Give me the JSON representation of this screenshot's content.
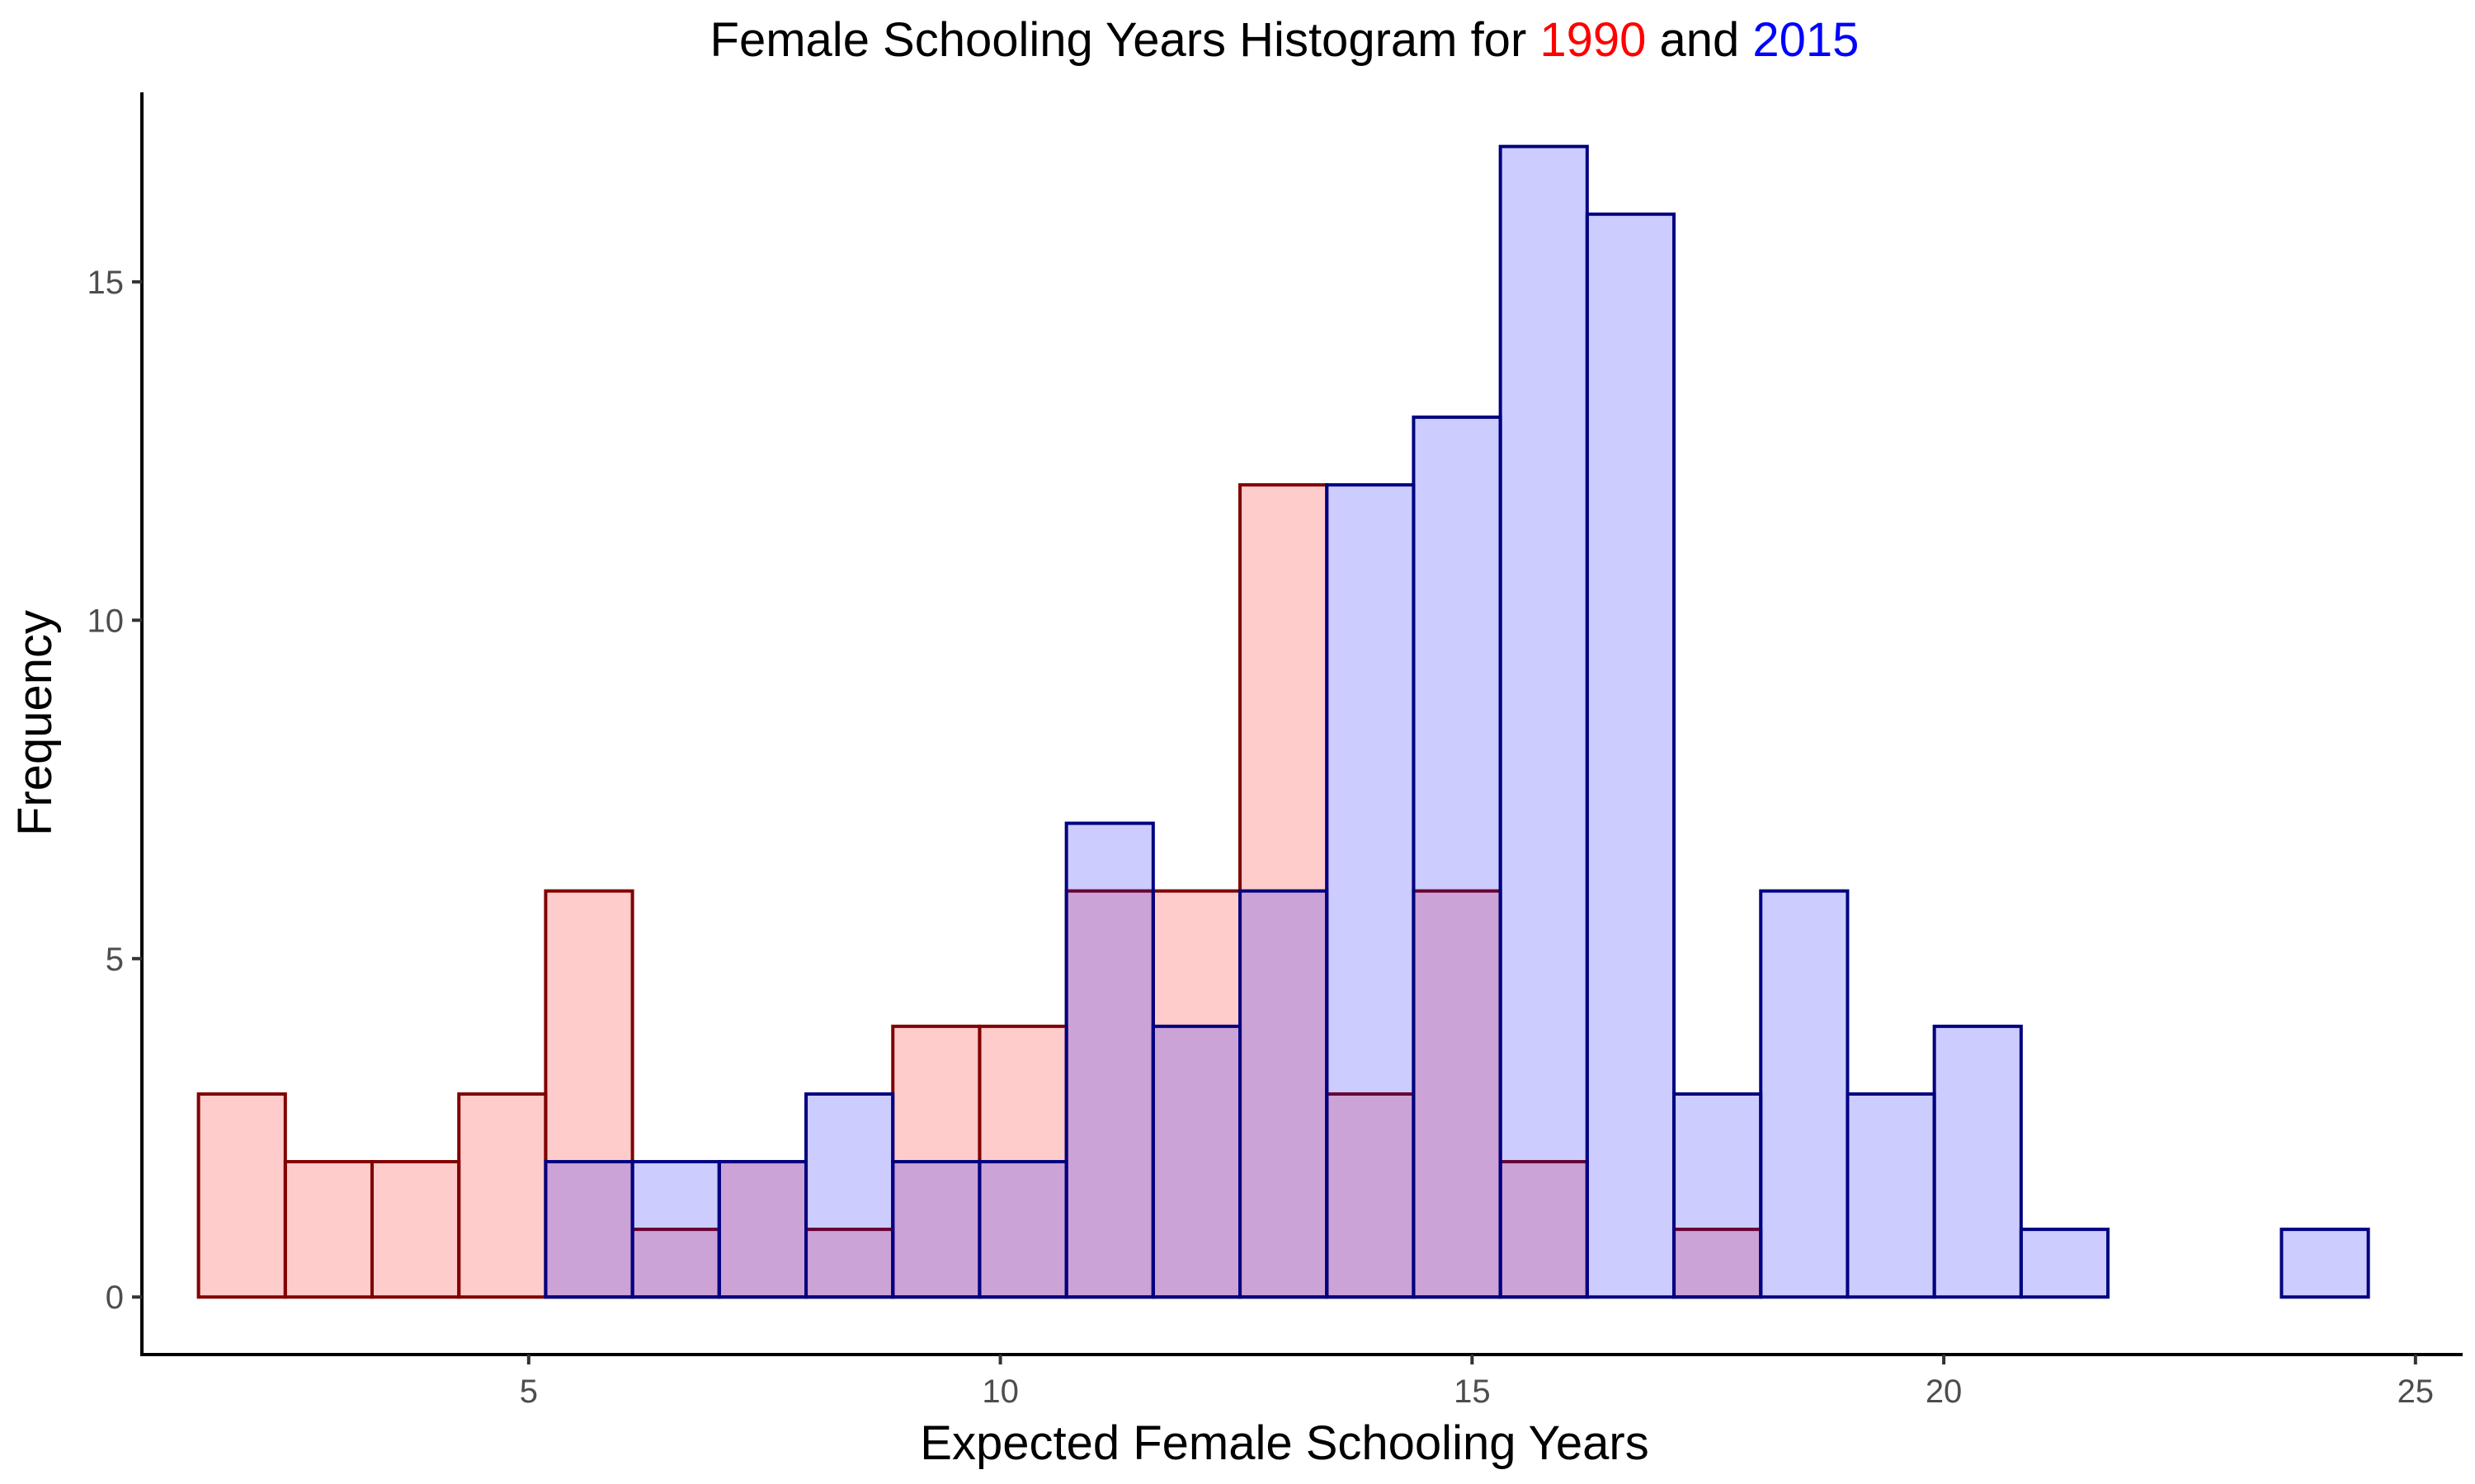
{
  "chart_data": {
    "type": "bar",
    "title": {
      "prefix": "Female Schooling Years Histogram for ",
      "year1": "1990",
      "middle": " and ",
      "year2": "2015"
    },
    "xlabel": "Expected Female Schooling Years",
    "ylabel": "Frequency",
    "xlim": [
      0.9,
      25.5
    ],
    "ylim": [
      -0.85,
      17.8
    ],
    "xticks": [
      5,
      10,
      15,
      20,
      25
    ],
    "yticks": [
      0,
      5,
      10,
      15
    ],
    "grid": false,
    "bins": [
      [
        1.5,
        2.42
      ],
      [
        2.42,
        3.34
      ],
      [
        3.34,
        4.26
      ],
      [
        4.26,
        5.18
      ],
      [
        5.18,
        6.1
      ],
      [
        6.1,
        7.02
      ],
      [
        7.02,
        7.94
      ],
      [
        7.94,
        8.86
      ],
      [
        8.86,
        9.78
      ],
      [
        9.78,
        10.7
      ],
      [
        10.7,
        11.62
      ],
      [
        11.62,
        12.54
      ],
      [
        12.54,
        13.46
      ],
      [
        13.46,
        14.38
      ],
      [
        14.38,
        15.3
      ],
      [
        15.3,
        16.22
      ],
      [
        16.22,
        17.14
      ],
      [
        17.14,
        18.06
      ],
      [
        18.06,
        18.98
      ],
      [
        18.98,
        19.9
      ],
      [
        19.9,
        20.82
      ],
      [
        20.82,
        21.74
      ],
      [
        21.74,
        22.66
      ],
      [
        22.66,
        23.58
      ],
      [
        23.58,
        24.5
      ]
    ],
    "series": [
      {
        "year": "1990",
        "fill": "#ff0000",
        "fill_opacity": 0.2,
        "stroke": "#800000",
        "values": [
          3,
          2,
          2,
          3,
          6,
          1,
          2,
          1,
          4,
          4,
          6,
          6,
          12,
          3,
          6,
          2,
          0,
          1,
          0,
          0,
          0,
          0,
          0,
          0,
          0
        ]
      },
      {
        "year": "2015",
        "fill": "#0000ff",
        "fill_opacity": 0.2,
        "stroke": "#000080",
        "values": [
          0,
          0,
          0,
          0,
          2,
          2,
          2,
          3,
          2,
          2,
          7,
          4,
          6,
          12,
          13,
          17,
          16,
          3,
          6,
          3,
          4,
          1,
          0,
          0,
          1
        ]
      }
    ],
    "title_colors": {
      "year1": "#ff0000",
      "year2": "#0000ff",
      "text": "#000000"
    }
  }
}
